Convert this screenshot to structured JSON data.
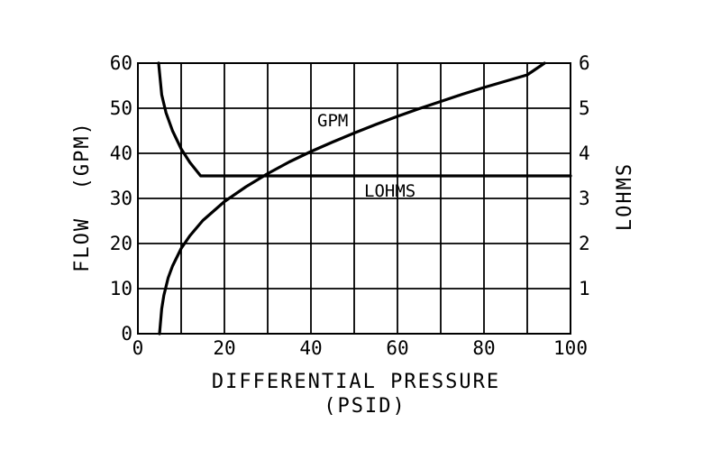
{
  "chart_data": {
    "type": "line",
    "xlabel": "DIFFERENTIAL PRESSURE",
    "xlabel_unit": "(PSID)",
    "ylabel_left": "FLOW  (GPM)",
    "ylabel_right": "LOHMS",
    "xlim": [
      0,
      100
    ],
    "ylim_left": [
      0,
      60
    ],
    "ylim_right": [
      0,
      6
    ],
    "x_ticks": [
      "0",
      "20",
      "40",
      "60",
      "80",
      "100"
    ],
    "y_left_ticks": [
      "0",
      "10",
      "20",
      "30",
      "40",
      "50",
      "60"
    ],
    "y_right_ticks": [
      "1",
      "2",
      "3",
      "4",
      "5",
      "6"
    ],
    "grid": true,
    "series": [
      {
        "name": "GPM",
        "axis": "left",
        "x": [
          5,
          5.5,
          6,
          7,
          8,
          10,
          12,
          15,
          20,
          25,
          30,
          35,
          40,
          45,
          50,
          55,
          60,
          65,
          70,
          75,
          80,
          85,
          90,
          94
        ],
        "y": [
          0,
          5.5,
          8.5,
          12.4,
          15,
          18.9,
          21.7,
          25.1,
          29.3,
          32.6,
          35.5,
          38.1,
          40.4,
          42.5,
          44.5,
          46.4,
          48.2,
          49.9,
          51.5,
          53.1,
          54.6,
          56,
          57.4,
          60
        ]
      },
      {
        "name": "LOHMS",
        "axis": "right",
        "x": [
          4.8,
          5.5,
          6.5,
          8,
          10,
          12,
          14.5,
          20,
          40,
          60,
          80,
          100
        ],
        "y": [
          6,
          5.3,
          4.9,
          4.5,
          4.1,
          3.8,
          3.5,
          3.5,
          3.5,
          3.5,
          3.5,
          3.5
        ]
      }
    ]
  }
}
